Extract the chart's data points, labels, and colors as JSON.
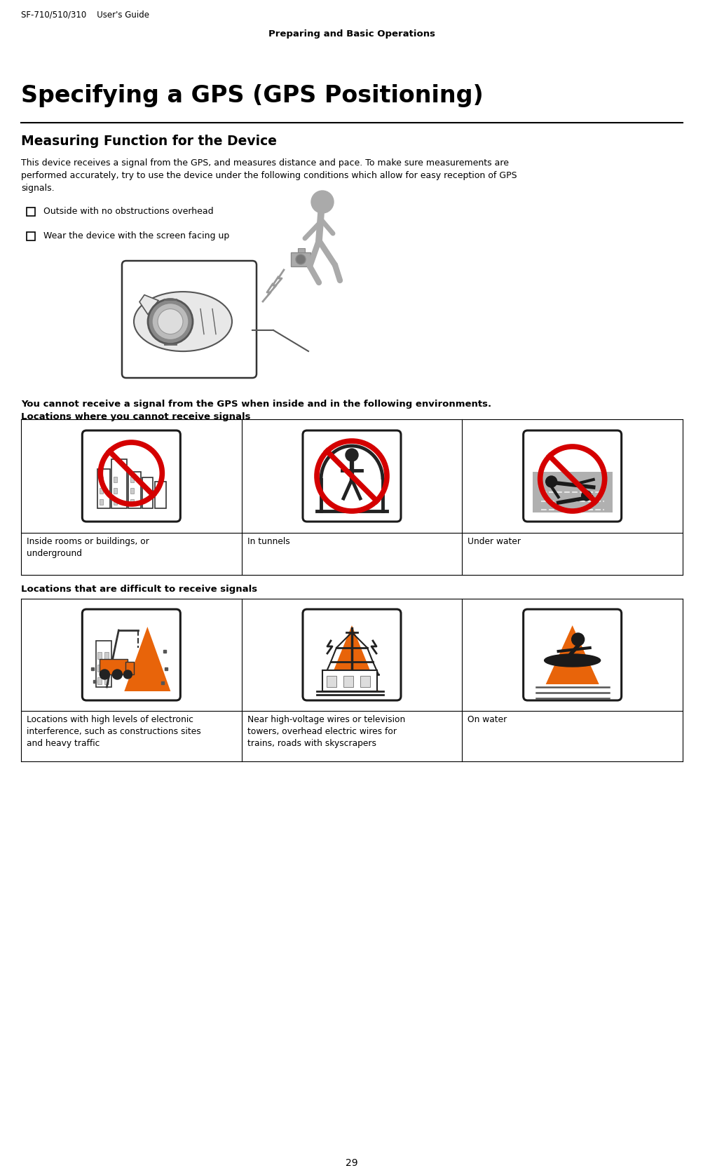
{
  "header_left": "SF-710/510/310    User's Guide",
  "header_center": "Preparing and Basic Operations",
  "title": "Specifying a GPS (GPS Positioning)",
  "section1_title": "Measuring Function for the Device",
  "body_line1": "This device receives a signal from the GPS, and measures distance and pace. To make sure measurements are",
  "body_line2": "performed accurately, try to use the device under the following conditions which allow for easy reception of GPS",
  "body_line3": "signals.",
  "bullet1": "Outside with no obstructions overhead",
  "bullet2": "Wear the device with the screen facing up",
  "gps_warning": "You cannot receive a signal from the GPS when inside and in the following environments.",
  "cannot_title": "Locations where you cannot receive signals",
  "cannot_labels": [
    "Inside rooms or buildings, or\nunderground",
    "In tunnels",
    "Under water"
  ],
  "difficult_title": "Locations that are difficult to receive signals",
  "difficult_labels": [
    "Locations with high levels of electronic\ninterference, such as constructions sites\nand heavy traffic",
    "Near high-voltage wires or television\ntowers, overhead electric wires for\ntrains, roads with skyscrapers",
    "On water"
  ],
  "footer_page": "29",
  "bg_color": "#ffffff",
  "text_color": "#000000",
  "icon_red": "#d40000",
  "icon_orange": "#e8640a",
  "icon_gray": "#aaaaaa"
}
